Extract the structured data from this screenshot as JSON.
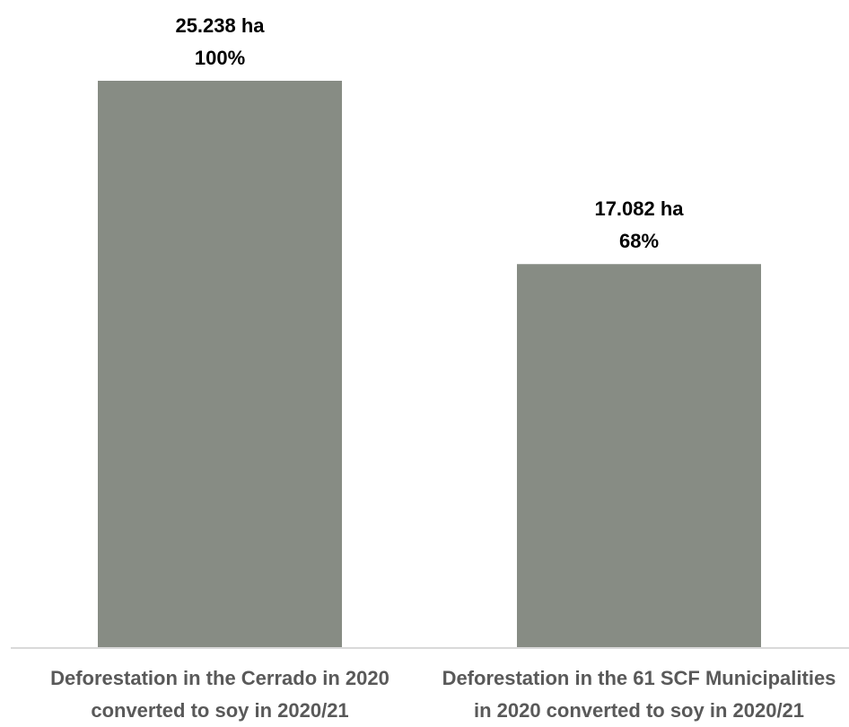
{
  "chart_data": {
    "type": "bar",
    "categories": [
      [
        "Deforestation in the Cerrado in 2020",
        "converted to soy in 2020/21"
      ],
      [
        "Deforestation in the 61 SCF Municipalities",
        "in 2020 converted to soy in 2020/21"
      ]
    ],
    "values": [
      25238,
      17082
    ],
    "value_labels": [
      [
        "25.238 ha",
        "100%"
      ],
      [
        "17.082 ha",
        "68%"
      ]
    ],
    "unit": "ha",
    "ylim": [
      0,
      25238
    ],
    "grid": false,
    "legend": "none",
    "colors": {
      "bar": "#878c84",
      "value_label": "#000000",
      "category_label": "#595959",
      "baseline": "#d9d9d9"
    }
  }
}
